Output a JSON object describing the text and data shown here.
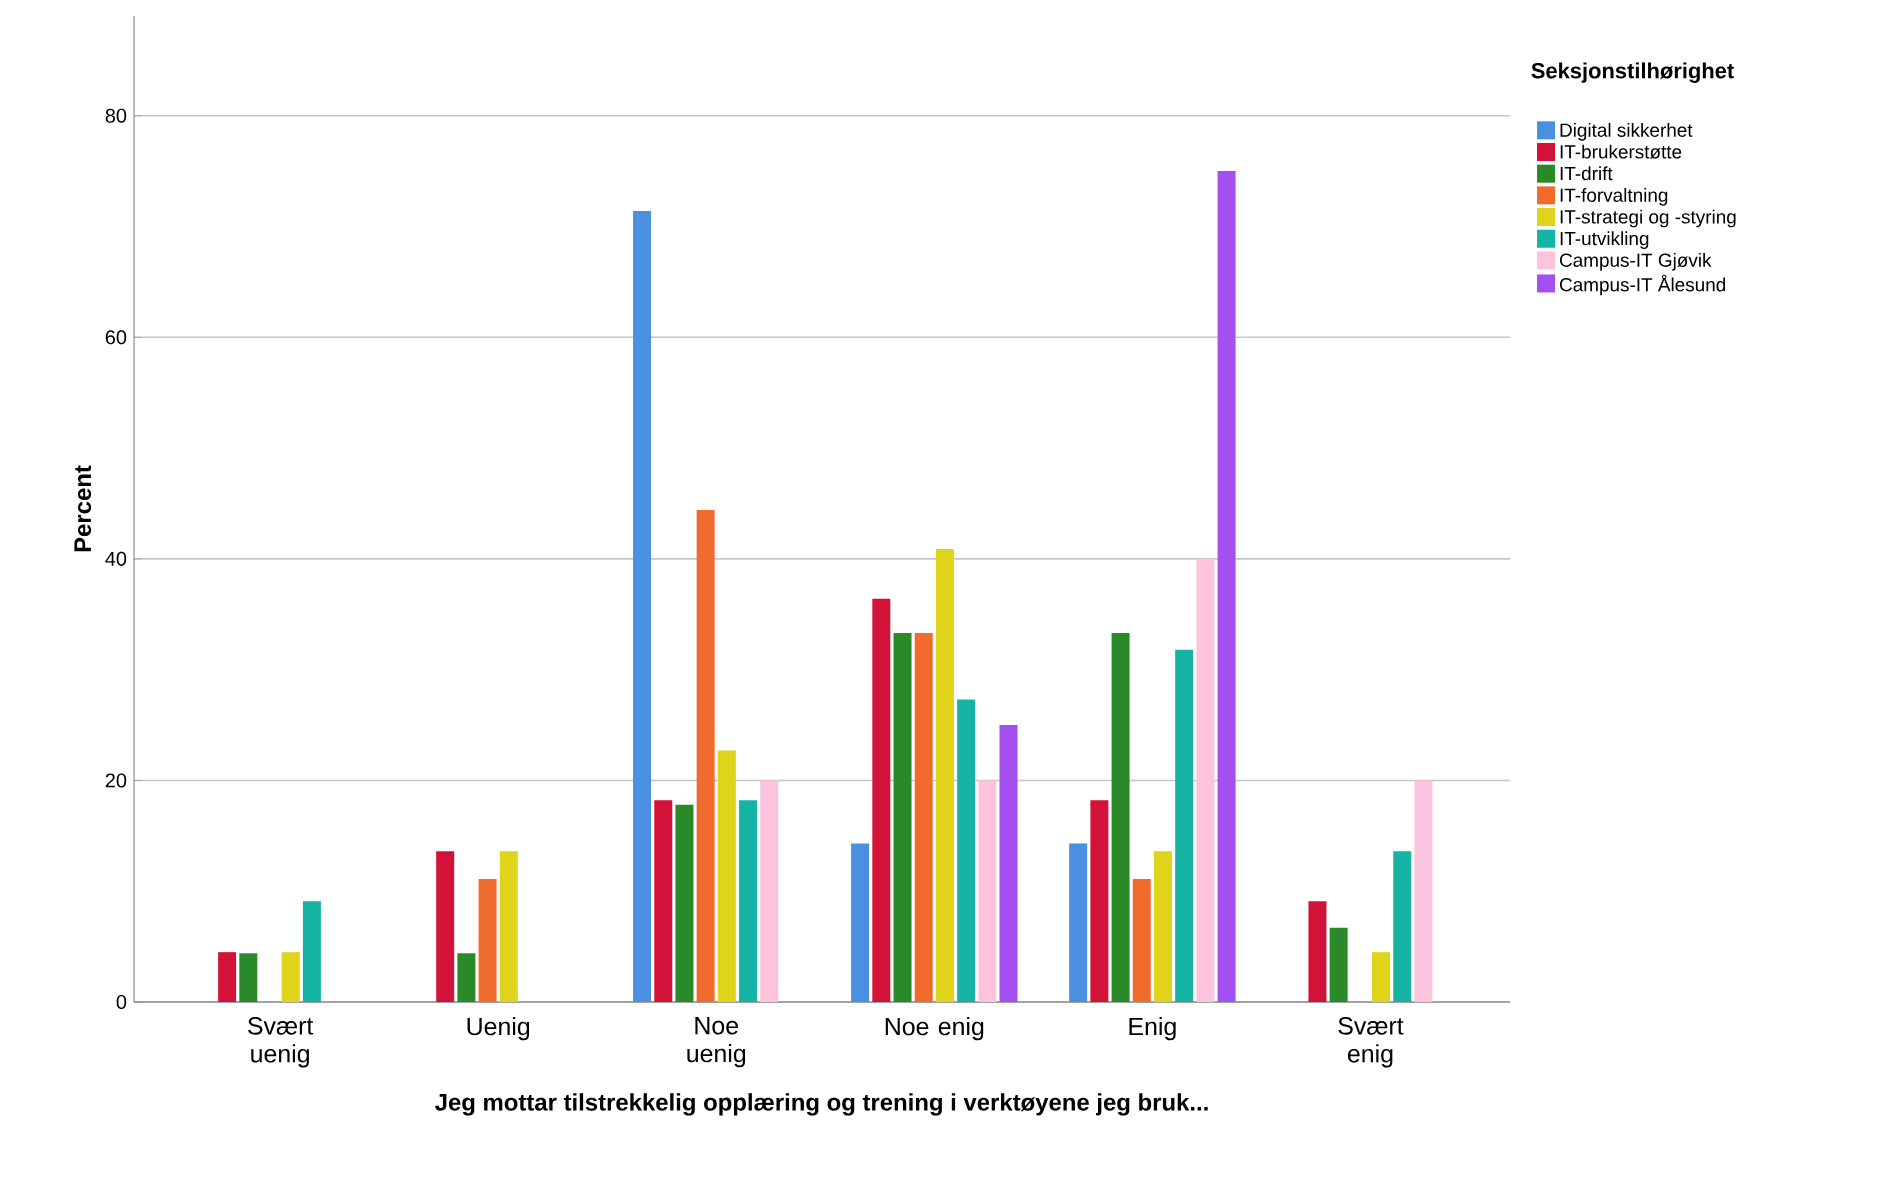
{
  "chart_data": {
    "type": "bar",
    "xlabel": "Jeg mottar tilstrekkelig opplæring og trening i verktøyene jeg bruk...",
    "ylabel": "Percent",
    "legend_title": "Seksjonstilhørighet",
    "categories": [
      "Svært uenig",
      "Uenig",
      "Noe uenig",
      "Noe enig",
      "Enig",
      "Svært enig"
    ],
    "series": [
      {
        "name": "Digital sikkerhet",
        "color": "#4a8fe0",
        "values": [
          null,
          null,
          71.4,
          14.3,
          14.3,
          null
        ]
      },
      {
        "name": "IT-brukerstøtte",
        "color": "#d3123a",
        "values": [
          4.5,
          13.6,
          18.2,
          36.4,
          18.2,
          9.1
        ]
      },
      {
        "name": "IT-drift",
        "color": "#2a8a2a",
        "values": [
          4.4,
          4.4,
          17.8,
          33.3,
          33.3,
          6.7
        ]
      },
      {
        "name": "IT-forvaltning",
        "color": "#f26b2e",
        "values": [
          null,
          11.1,
          44.4,
          33.3,
          11.1,
          null
        ]
      },
      {
        "name": "IT-strategi og -styring",
        "color": "#dfd419",
        "values": [
          4.5,
          13.6,
          22.7,
          40.9,
          13.6,
          4.5
        ]
      },
      {
        "name": "IT-utvikling",
        "color": "#14b3a3",
        "values": [
          9.1,
          null,
          18.2,
          27.3,
          31.8,
          13.6
        ]
      },
      {
        "name": "Campus-IT Gjøvik",
        "color": "#fcc4dc",
        "values": [
          null,
          null,
          20,
          20,
          40,
          20
        ]
      },
      {
        "name": "Campus-IT Ålesund",
        "color": "#a44ff0",
        "values": [
          null,
          null,
          null,
          25,
          75,
          null
        ]
      }
    ],
    "ylim": [
      0,
      89
    ],
    "yticks": [
      0,
      20,
      40,
      60,
      80
    ],
    "grid": "y",
    "legend": "right"
  }
}
